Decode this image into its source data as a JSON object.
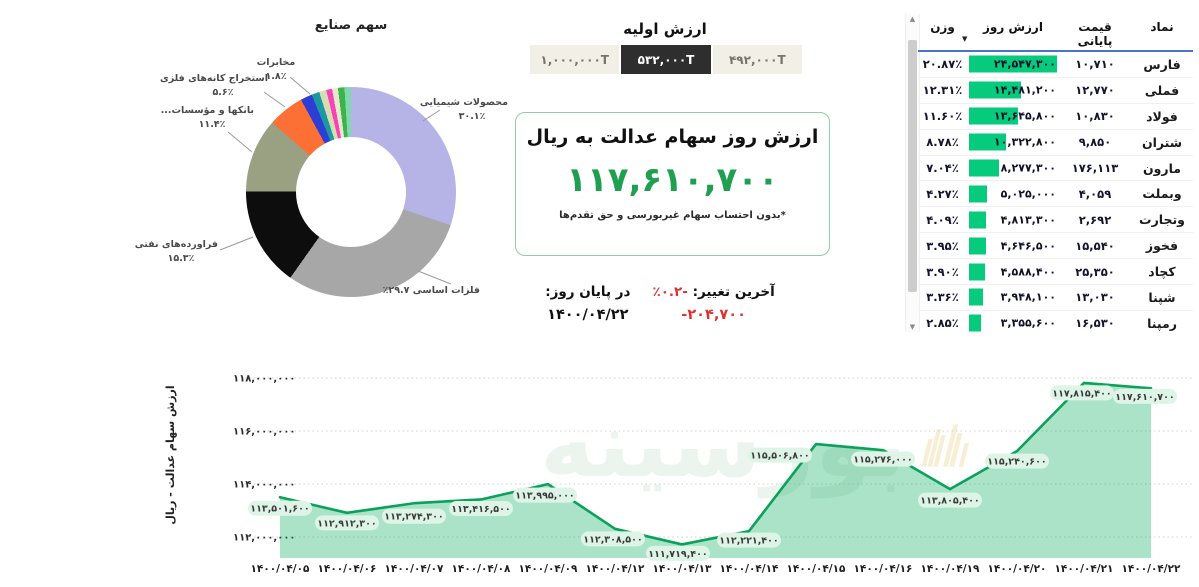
{
  "watermark": {
    "text": "بورسینه"
  },
  "initial_value": {
    "title": "ارزش اولیه",
    "options": [
      {
        "label": "۴۹۲,۰۰۰T",
        "selected": false
      },
      {
        "label": "۵۳۲,۰۰۰T",
        "selected": true
      },
      {
        "label": "۱,۰۰۰,۰۰۰T",
        "selected": false
      }
    ]
  },
  "value_box": {
    "title": "ارزش روز سهام عدالت به ریال",
    "value": "۱۱۷,۶۱۰,۷۰۰",
    "note": "*بدون احتساب سهام غیربورسی و حق تقدم‌ها",
    "accent_color": "#1fa050",
    "border_color": "#8fcfa5"
  },
  "change": {
    "label": "آخرین تغییر:",
    "pct": "-۰.۲٪",
    "eod_label": "در پایان روز:",
    "amount": "-۲۰۴,۷۰۰",
    "date": "۱۴۰۰/۰۴/۲۲",
    "negative_color": "#e03131"
  },
  "table": {
    "headers": [
      "نماد",
      "قیمت پایانی",
      "ارزش روز",
      "وزن"
    ],
    "sort_icon": "▼",
    "bar_color": "#06cb7d",
    "rows": [
      {
        "symbol": "فارس",
        "close": "۱۰,۷۱۰",
        "value": "۲۴,۵۴۷,۳۰۰",
        "weight": "۲۰.۸۷٪",
        "bar_pct": 100
      },
      {
        "symbol": "فملی",
        "close": "۱۲,۷۷۰",
        "value": "۱۴,۴۸۱,۲۰۰",
        "weight": "۱۲.۳۱٪",
        "bar_pct": 59
      },
      {
        "symbol": "فولاد",
        "close": "۱۰,۸۳۰",
        "value": "۱۳,۶۴۵,۸۰۰",
        "weight": "۱۱.۶۰٪",
        "bar_pct": 55.6
      },
      {
        "symbol": "شتران",
        "close": "۹,۸۵۰",
        "value": "۱۰,۳۲۲,۸۰۰",
        "weight": "۸.۷۸٪",
        "bar_pct": 42
      },
      {
        "symbol": "مارون",
        "close": "۱۷۶,۱۱۳",
        "value": "۸,۲۷۷,۳۰۰",
        "weight": "۷.۰۴٪",
        "bar_pct": 33.7
      },
      {
        "symbol": "وبملت",
        "close": "۴,۰۵۹",
        "value": "۵,۰۲۵,۰۰۰",
        "weight": "۴.۲۷٪",
        "bar_pct": 20.5
      },
      {
        "symbol": "وتجارت",
        "close": "۲,۶۹۲",
        "value": "۴,۸۱۳,۳۰۰",
        "weight": "۴.۰۹٪",
        "bar_pct": 19.6
      },
      {
        "symbol": "فخوز",
        "close": "۱۵,۵۴۰",
        "value": "۴,۶۴۶,۵۰۰",
        "weight": "۳.۹۵٪",
        "bar_pct": 18.9
      },
      {
        "symbol": "کچاد",
        "close": "۲۵,۳۵۰",
        "value": "۴,۵۸۸,۴۰۰",
        "weight": "۳.۹۰٪",
        "bar_pct": 18.7
      },
      {
        "symbol": "شپنا",
        "close": "۱۳,۰۳۰",
        "value": "۳,۹۴۸,۱۰۰",
        "weight": "۳.۳۶٪",
        "bar_pct": 16.1
      },
      {
        "symbol": "رمپنا",
        "close": "۱۶,۵۳۰",
        "value": "۳,۳۵۵,۶۰۰",
        "weight": "۲.۸۵٪",
        "bar_pct": 13.7
      }
    ],
    "clipped_row_bar_pct": 12
  },
  "chart_data": [
    {
      "type": "pie",
      "donut": true,
      "title": "سهم صنایع",
      "slices": [
        {
          "label": "محصولات شیمیایی",
          "pct": 30.1,
          "pct_label": "۳۰.۱٪",
          "color": "#b6b3e7"
        },
        {
          "label": "فلزات اساسی",
          "pct": 29.7,
          "pct_label": "۲۹.۷٪",
          "color": "#a7a7a7"
        },
        {
          "label": "فراورده‌های نفتی",
          "pct": 15.3,
          "pct_label": "۱۵.۳٪",
          "color": "#0d0d0d"
        },
        {
          "label": "بانکها و مؤسسات...",
          "pct": 11.4,
          "pct_label": "۱۱.۴٪",
          "color": "#9aa183"
        },
        {
          "label": "استخراج کانه‌های فلزی",
          "pct": 5.6,
          "pct_label": "۵.۶٪",
          "color": "#fc6f35"
        },
        {
          "label": "مخابرات",
          "pct": 1.8,
          "pct_label": "۱.۸٪",
          "color": "#2c3ed6"
        },
        {
          "label": "",
          "pct": 1.2,
          "pct_label": "",
          "color": "#1b98a0"
        },
        {
          "label": "",
          "pct": 1.1,
          "pct_label": "",
          "color": "#d8dcb2"
        },
        {
          "label": "",
          "pct": 0.9,
          "pct_label": "",
          "color": "#f743b5"
        },
        {
          "label": "",
          "pct": 0.9,
          "pct_label": "",
          "color": "#e8e8d0"
        },
        {
          "label": "",
          "pct": 1.0,
          "pct_label": "",
          "color": "#3cb44b"
        },
        {
          "label": "",
          "pct": 1.0,
          "pct_label": "",
          "color": "#7fd8b0"
        }
      ]
    },
    {
      "type": "area",
      "ylabel": "ارزش سهام عدالت - ریال",
      "x": [
        "۱۴۰۰/۰۴/۰۵",
        "۱۴۰۰/۰۴/۰۶",
        "۱۴۰۰/۰۴/۰۷",
        "۱۴۰۰/۰۴/۰۸",
        "۱۴۰۰/۰۴/۰۹",
        "۱۴۰۰/۰۴/۱۲",
        "۱۴۰۰/۰۴/۱۳",
        "۱۴۰۰/۰۴/۱۴",
        "۱۴۰۰/۰۴/۱۵",
        "۱۴۰۰/۰۴/۱۶",
        "۱۴۰۰/۰۴/۱۹",
        "۱۴۰۰/۰۴/۲۰",
        "۱۴۰۰/۰۴/۲۱",
        "۱۴۰۰/۰۴/۲۲"
      ],
      "values": [
        113501600,
        112912300,
        113274300,
        113416500,
        113995000,
        112308500,
        111719400,
        112221400,
        115506800,
        115276000,
        113805400,
        115240600,
        117815400,
        117610700
      ],
      "yticks": [
        112000000,
        114000000,
        116000000,
        118000000
      ],
      "ylim": [
        111000000,
        118500000
      ],
      "grid": "dotted",
      "legend": "none",
      "line_color": "#0aa25a",
      "fill_color": "rgba(0,170,90,0.33)",
      "label_bg": "#ddf4e7"
    }
  ]
}
